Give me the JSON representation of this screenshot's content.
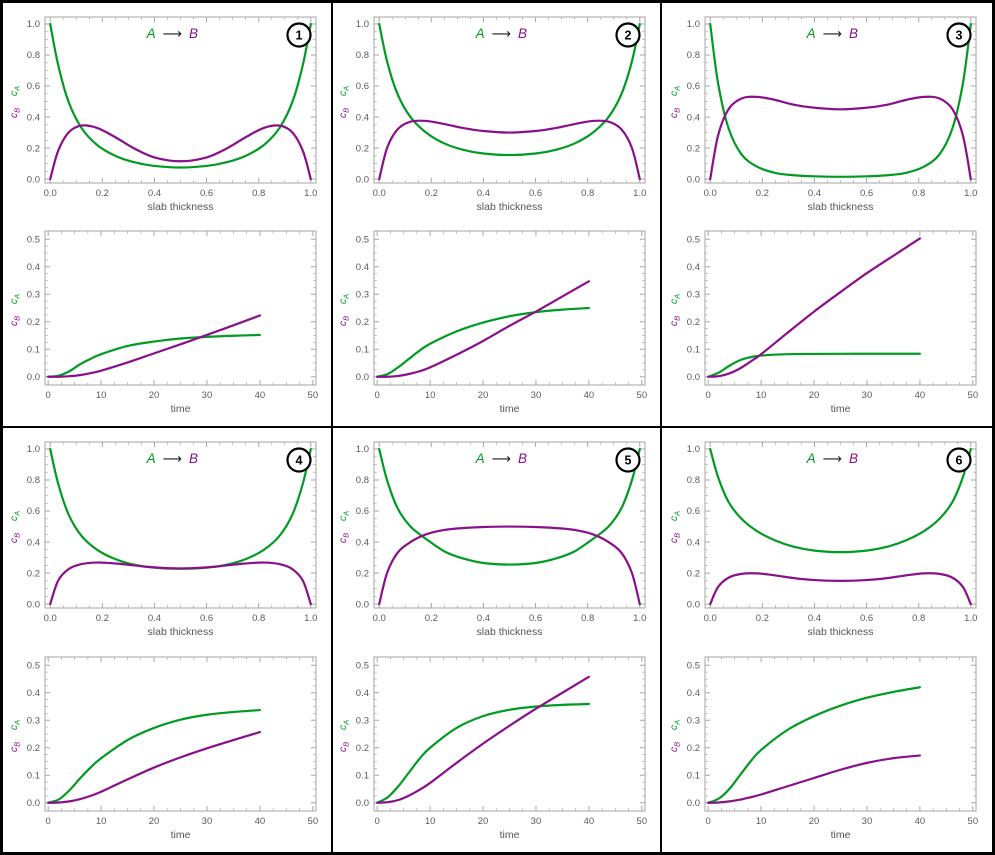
{
  "colors": {
    "cA": "#009B22",
    "cB": "#8A0F8A",
    "frame": "#A6A6A6",
    "tick_label": "#5A5A5A",
    "axis_label": "#555555",
    "title_arrow": "#1A1A1A",
    "panel_border": "#000000",
    "number_ring": "#000000"
  },
  "ylabel": {
    "cA_main": "c",
    "cA_sub": "A",
    "cB_main": "c",
    "cB_sub": "B"
  },
  "profile_axes": {
    "xlabel": "slab thickness",
    "xlim": [
      -0.02,
      1.02
    ],
    "ylim": [
      -0.025,
      1.045
    ],
    "xtick_values": [
      0,
      0.2,
      0.4,
      0.6,
      0.8,
      1
    ],
    "xtick_labels": [
      "0.0",
      "0.2",
      "0.4",
      "0.6",
      "0.8",
      "1.0"
    ],
    "ytick_values": [
      0,
      0.2,
      0.4,
      0.6,
      0.8,
      1
    ],
    "ytick_labels": [
      "0.0",
      "0.2",
      "0.4",
      "0.6",
      "0.8",
      "1.0"
    ],
    "minors_per_gap": 3,
    "grid": false,
    "frame": "all-sides"
  },
  "kinetics_axes": {
    "xlabel": "time",
    "xlim": [
      -0.6,
      50.6
    ],
    "ylim": [
      -0.03,
      0.53
    ],
    "xtick_values": [
      0,
      10,
      20,
      30,
      40,
      50
    ],
    "xtick_labels": [
      "0",
      "10",
      "20",
      "30",
      "40",
      "50"
    ],
    "ytick_values": [
      0,
      0.1,
      0.2,
      0.3,
      0.4,
      0.5
    ],
    "ytick_labels": [
      "0.0",
      "0.1",
      "0.2",
      "0.3",
      "0.4",
      "0.5"
    ],
    "minors_per_gap": 3,
    "grid": false,
    "frame": "all-sides"
  },
  "chart_data": [
    {
      "panel_label": "1",
      "title": {
        "reactant": "A",
        "arrow": "⟶",
        "product": "B"
      },
      "profile": {
        "type": "line",
        "x": [
          0,
          0.03,
          0.07,
          0.12,
          0.18,
          0.25,
          0.32,
          0.4,
          0.5,
          0.6,
          0.68,
          0.75,
          0.82,
          0.88,
          0.93,
          0.97,
          1
        ],
        "series": [
          {
            "name": "cA",
            "y": [
              1,
              0.74,
              0.5,
              0.33,
              0.22,
              0.15,
              0.11,
              0.085,
              0.075,
              0.085,
              0.11,
              0.15,
              0.22,
              0.33,
              0.5,
              0.74,
              1
            ]
          },
          {
            "name": "cB",
            "y": [
              0,
              0.18,
              0.3,
              0.345,
              0.33,
              0.27,
              0.2,
              0.14,
              0.115,
              0.14,
              0.2,
              0.27,
              0.33,
              0.345,
              0.3,
              0.18,
              0
            ]
          }
        ]
      },
      "kinetics": {
        "type": "line",
        "x": [
          0,
          2,
          4,
          6,
          8,
          10,
          15,
          20,
          25,
          30,
          35,
          40
        ],
        "series": [
          {
            "name": "cA",
            "y": [
              0,
              0.004,
              0.02,
              0.045,
              0.065,
              0.082,
              0.112,
              0.128,
              0.139,
              0.145,
              0.149,
              0.152
            ]
          },
          {
            "name": "cB",
            "y": [
              0,
              0,
              0.002,
              0.006,
              0.013,
              0.022,
              0.052,
              0.085,
              0.118,
              0.152,
              0.187,
              0.223
            ]
          }
        ]
      }
    },
    {
      "panel_label": "2",
      "title": {
        "reactant": "A",
        "arrow": "⟶",
        "product": "B"
      },
      "profile": {
        "type": "line",
        "x": [
          0,
          0.03,
          0.07,
          0.12,
          0.18,
          0.25,
          0.32,
          0.4,
          0.5,
          0.6,
          0.68,
          0.75,
          0.82,
          0.88,
          0.93,
          0.97,
          1
        ],
        "series": [
          {
            "name": "cA",
            "y": [
              1,
              0.76,
              0.55,
              0.4,
              0.3,
              0.23,
              0.19,
              0.165,
              0.155,
              0.165,
              0.19,
              0.23,
              0.3,
              0.4,
              0.55,
              0.76,
              1
            ]
          },
          {
            "name": "cB",
            "y": [
              0,
              0.2,
              0.32,
              0.37,
              0.375,
              0.355,
              0.33,
              0.31,
              0.3,
              0.31,
              0.33,
              0.355,
              0.375,
              0.37,
              0.32,
              0.2,
              0
            ]
          }
        ]
      },
      "kinetics": {
        "type": "line",
        "x": [
          0,
          2,
          4,
          6,
          8,
          10,
          15,
          20,
          25,
          30,
          35,
          40
        ],
        "series": [
          {
            "name": "cA",
            "y": [
              0,
              0.01,
              0.035,
              0.065,
              0.095,
              0.12,
              0.165,
              0.197,
              0.22,
              0.235,
              0.244,
              0.25
            ]
          },
          {
            "name": "cB",
            "y": [
              0,
              0,
              0.003,
              0.01,
              0.02,
              0.034,
              0.08,
              0.13,
              0.185,
              0.237,
              0.292,
              0.347
            ]
          }
        ]
      }
    },
    {
      "panel_label": "3",
      "title": {
        "reactant": "A",
        "arrow": "⟶",
        "product": "B"
      },
      "profile": {
        "type": "line",
        "x": [
          0,
          0.03,
          0.07,
          0.12,
          0.18,
          0.25,
          0.32,
          0.4,
          0.5,
          0.6,
          0.68,
          0.75,
          0.82,
          0.88,
          0.93,
          0.97,
          1
        ],
        "series": [
          {
            "name": "cA",
            "y": [
              1,
              0.62,
              0.33,
              0.16,
              0.08,
              0.04,
              0.025,
              0.018,
              0.015,
              0.018,
              0.025,
              0.04,
              0.08,
              0.16,
              0.33,
              0.62,
              1
            ]
          },
          {
            "name": "cB",
            "y": [
              0,
              0.28,
              0.45,
              0.52,
              0.53,
              0.51,
              0.48,
              0.46,
              0.45,
              0.46,
              0.48,
              0.51,
              0.53,
              0.52,
              0.45,
              0.28,
              0
            ]
          }
        ]
      },
      "kinetics": {
        "type": "line",
        "x": [
          0,
          2,
          4,
          6,
          8,
          10,
          15,
          20,
          25,
          30,
          35,
          40
        ],
        "series": [
          {
            "name": "cA",
            "y": [
              0,
              0.015,
              0.04,
              0.06,
              0.071,
              0.077,
              0.082,
              0.083,
              0.0835,
              0.0836,
              0.0836,
              0.0836
            ]
          },
          {
            "name": "cB",
            "y": [
              0,
              0.002,
              0.012,
              0.03,
              0.055,
              0.082,
              0.16,
              0.237,
              0.308,
              0.377,
              0.44,
              0.503
            ]
          }
        ]
      }
    },
    {
      "panel_label": "4",
      "title": {
        "reactant": "A",
        "arrow": "⟶",
        "product": "B"
      },
      "profile": {
        "type": "line",
        "x": [
          0,
          0.03,
          0.07,
          0.12,
          0.18,
          0.25,
          0.32,
          0.4,
          0.5,
          0.6,
          0.68,
          0.75,
          0.82,
          0.88,
          0.93,
          0.97,
          1
        ],
        "series": [
          {
            "name": "cA",
            "y": [
              1,
              0.78,
              0.58,
              0.44,
              0.35,
              0.29,
              0.255,
              0.235,
              0.228,
              0.235,
              0.255,
              0.29,
              0.35,
              0.44,
              0.58,
              0.78,
              1
            ]
          },
          {
            "name": "cB",
            "y": [
              0,
              0.15,
              0.225,
              0.258,
              0.268,
              0.262,
              0.25,
              0.237,
              0.23,
              0.237,
              0.25,
              0.262,
              0.268,
              0.258,
              0.225,
              0.15,
              0
            ]
          }
        ]
      },
      "kinetics": {
        "type": "line",
        "x": [
          0,
          2,
          4,
          6,
          8,
          10,
          15,
          20,
          25,
          30,
          35,
          40
        ],
        "series": [
          {
            "name": "cA",
            "y": [
              0,
              0.012,
              0.045,
              0.088,
              0.128,
              0.162,
              0.228,
              0.272,
              0.302,
              0.32,
              0.33,
              0.337
            ]
          },
          {
            "name": "cB",
            "y": [
              0,
              0.001,
              0.005,
              0.013,
              0.025,
              0.04,
              0.085,
              0.128,
              0.165,
              0.198,
              0.228,
              0.257
            ]
          }
        ]
      }
    },
    {
      "panel_label": "5",
      "title": {
        "reactant": "A",
        "arrow": "⟶",
        "product": "B"
      },
      "profile": {
        "type": "line",
        "x": [
          0,
          0.03,
          0.07,
          0.12,
          0.18,
          0.25,
          0.32,
          0.4,
          0.5,
          0.6,
          0.68,
          0.75,
          0.82,
          0.88,
          0.93,
          0.97,
          1
        ],
        "series": [
          {
            "name": "cA",
            "y": [
              1,
              0.8,
              0.62,
              0.5,
              0.42,
              0.34,
              0.295,
              0.265,
              0.255,
              0.265,
              0.295,
              0.34,
              0.42,
              0.5,
              0.62,
              0.8,
              1
            ]
          },
          {
            "name": "cB",
            "y": [
              0,
              0.2,
              0.33,
              0.4,
              0.45,
              0.478,
              0.49,
              0.497,
              0.5,
              0.497,
              0.49,
              0.478,
              0.45,
              0.4,
              0.33,
              0.2,
              0
            ]
          }
        ]
      },
      "kinetics": {
        "type": "line",
        "x": [
          0,
          2,
          4,
          6,
          8,
          10,
          15,
          20,
          25,
          30,
          35,
          40
        ],
        "series": [
          {
            "name": "cA",
            "y": [
              0,
              0.02,
              0.06,
              0.11,
              0.16,
              0.2,
              0.272,
              0.315,
              0.338,
              0.35,
              0.356,
              0.359
            ]
          },
          {
            "name": "cB",
            "y": [
              0,
              0.002,
              0.01,
              0.026,
              0.047,
              0.072,
              0.145,
              0.215,
              0.28,
              0.342,
              0.4,
              0.458
            ]
          }
        ]
      }
    },
    {
      "panel_label": "6",
      "title": {
        "reactant": "A",
        "arrow": "⟶",
        "product": "B"
      },
      "profile": {
        "type": "line",
        "x": [
          0,
          0.03,
          0.07,
          0.12,
          0.18,
          0.25,
          0.32,
          0.4,
          0.5,
          0.6,
          0.68,
          0.75,
          0.82,
          0.88,
          0.93,
          0.97,
          1
        ],
        "series": [
          {
            "name": "cA",
            "y": [
              1,
              0.82,
              0.66,
              0.55,
              0.47,
              0.41,
              0.37,
              0.345,
              0.335,
              0.345,
              0.37,
              0.41,
              0.47,
              0.55,
              0.66,
              0.82,
              1
            ]
          },
          {
            "name": "cB",
            "y": [
              0,
              0.11,
              0.17,
              0.195,
              0.198,
              0.185,
              0.168,
              0.155,
              0.15,
              0.155,
              0.168,
              0.185,
              0.198,
              0.195,
              0.17,
              0.11,
              0
            ]
          }
        ]
      },
      "kinetics": {
        "type": "line",
        "x": [
          0,
          2,
          4,
          6,
          8,
          10,
          15,
          20,
          25,
          30,
          35,
          40
        ],
        "series": [
          {
            "name": "cA",
            "y": [
              0,
              0.015,
              0.05,
              0.1,
              0.15,
              0.192,
              0.265,
              0.315,
              0.353,
              0.382,
              0.403,
              0.42
            ]
          },
          {
            "name": "cB",
            "y": [
              0,
              0.001,
              0.005,
              0.011,
              0.02,
              0.03,
              0.06,
              0.09,
              0.12,
              0.145,
              0.162,
              0.172
            ]
          }
        ]
      }
    }
  ]
}
